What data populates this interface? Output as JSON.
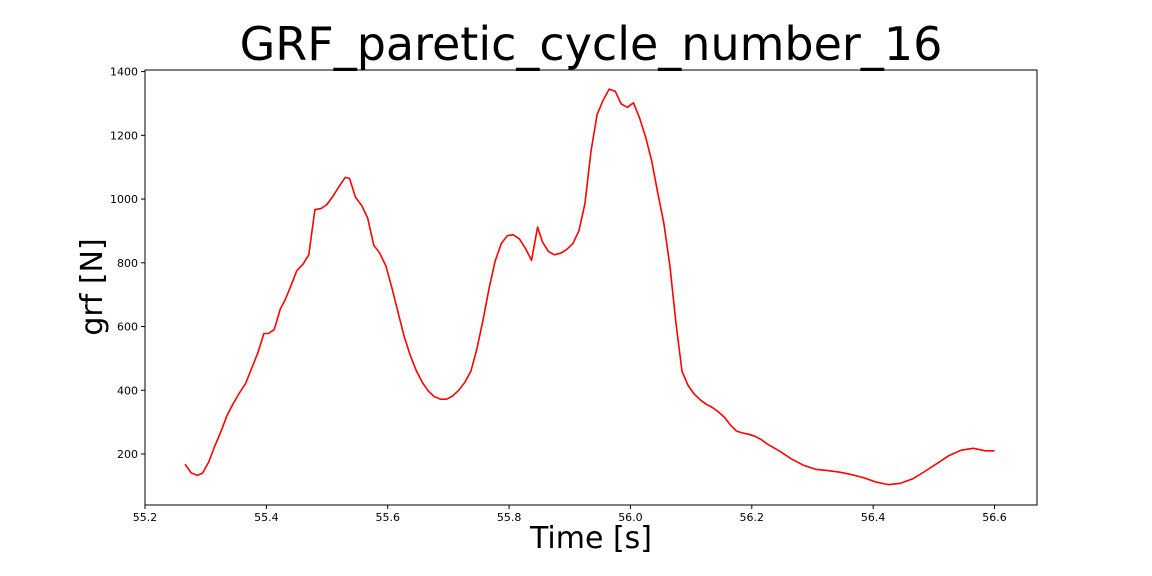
{
  "chart_data": {
    "type": "line",
    "title": "GRF_paretic_cycle_number_16",
    "xlabel": "Time [s]",
    "ylabel": "grf [N]",
    "xlim": [
      55.2,
      56.67
    ],
    "ylim": [
      40,
      1405
    ],
    "xticks": [
      55.2,
      55.4,
      55.6,
      55.8,
      56.0,
      56.2,
      56.4,
      56.6
    ],
    "xtick_labels": [
      "55.2",
      "55.4",
      "55.6",
      "55.8",
      "56.0",
      "56.2",
      "56.4",
      "56.6"
    ],
    "yticks": [
      200,
      400,
      600,
      800,
      1000,
      1200,
      1400
    ],
    "ytick_labels": [
      "200",
      "400",
      "600",
      "800",
      "1000",
      "1200",
      "1400"
    ],
    "grid": false,
    "series": [
      {
        "color": "#ff0000",
        "x": [
          55.266,
          55.276,
          55.286,
          55.295,
          55.305,
          55.315,
          55.325,
          55.335,
          55.345,
          55.355,
          55.366,
          55.376,
          55.386,
          55.396,
          55.403,
          55.413,
          55.423,
          55.43,
          55.44,
          55.45,
          55.46,
          55.47,
          55.48,
          55.49,
          55.5,
          55.51,
          55.52,
          55.53,
          55.537,
          55.547,
          55.557,
          55.567,
          55.577,
          55.587,
          55.597,
          55.607,
          55.617,
          55.627,
          55.637,
          55.647,
          55.657,
          55.667,
          55.677,
          55.687,
          55.697,
          55.707,
          55.717,
          55.727,
          55.737,
          55.747,
          55.757,
          55.767,
          55.777,
          55.787,
          55.797,
          55.807,
          55.817,
          55.827,
          55.837,
          55.847,
          55.855,
          55.865,
          55.875,
          55.885,
          55.895,
          55.905,
          55.915,
          55.925,
          55.935,
          55.945,
          55.955,
          55.965,
          55.975,
          55.985,
          55.995,
          56.005,
          56.015,
          56.025,
          56.035,
          56.045,
          56.055,
          56.065,
          56.075,
          56.085,
          56.095,
          56.105,
          56.115,
          56.125,
          56.135,
          56.145,
          56.155,
          56.165,
          56.175,
          56.185,
          56.195,
          56.205,
          56.215,
          56.225,
          56.245,
          56.265,
          56.285,
          56.305,
          56.325,
          56.345,
          56.365,
          56.385,
          56.405,
          56.425,
          56.445,
          56.465,
          56.485,
          56.505,
          56.525,
          56.545,
          56.565,
          56.585,
          56.6
        ],
        "y": [
          168,
          141,
          133,
          140,
          175,
          225,
          270,
          320,
          357,
          390,
          422,
          470,
          518,
          578,
          578,
          590,
          655,
          680,
          725,
          775,
          795,
          825,
          967,
          970,
          983,
          1010,
          1040,
          1068,
          1065,
          1005,
          980,
          940,
          855,
          830,
          790,
          720,
          645,
          570,
          510,
          462,
          425,
          397,
          380,
          372,
          372,
          382,
          400,
          425,
          460,
          530,
          620,
          720,
          805,
          860,
          885,
          888,
          875,
          845,
          808,
          912,
          865,
          835,
          825,
          830,
          842,
          860,
          900,
          985,
          1150,
          1265,
          1310,
          1345,
          1338,
          1298,
          1288,
          1302,
          1255,
          1195,
          1120,
          1020,
          925,
          790,
          610,
          460,
          415,
          388,
          370,
          356,
          346,
          332,
          315,
          290,
          272,
          266,
          262,
          256,
          246,
          232,
          210,
          185,
          165,
          152,
          148,
          143,
          135,
          125,
          112,
          104,
          108,
          122,
          145,
          170,
          195,
          212,
          218,
          210,
          210
        ]
      }
    ]
  }
}
